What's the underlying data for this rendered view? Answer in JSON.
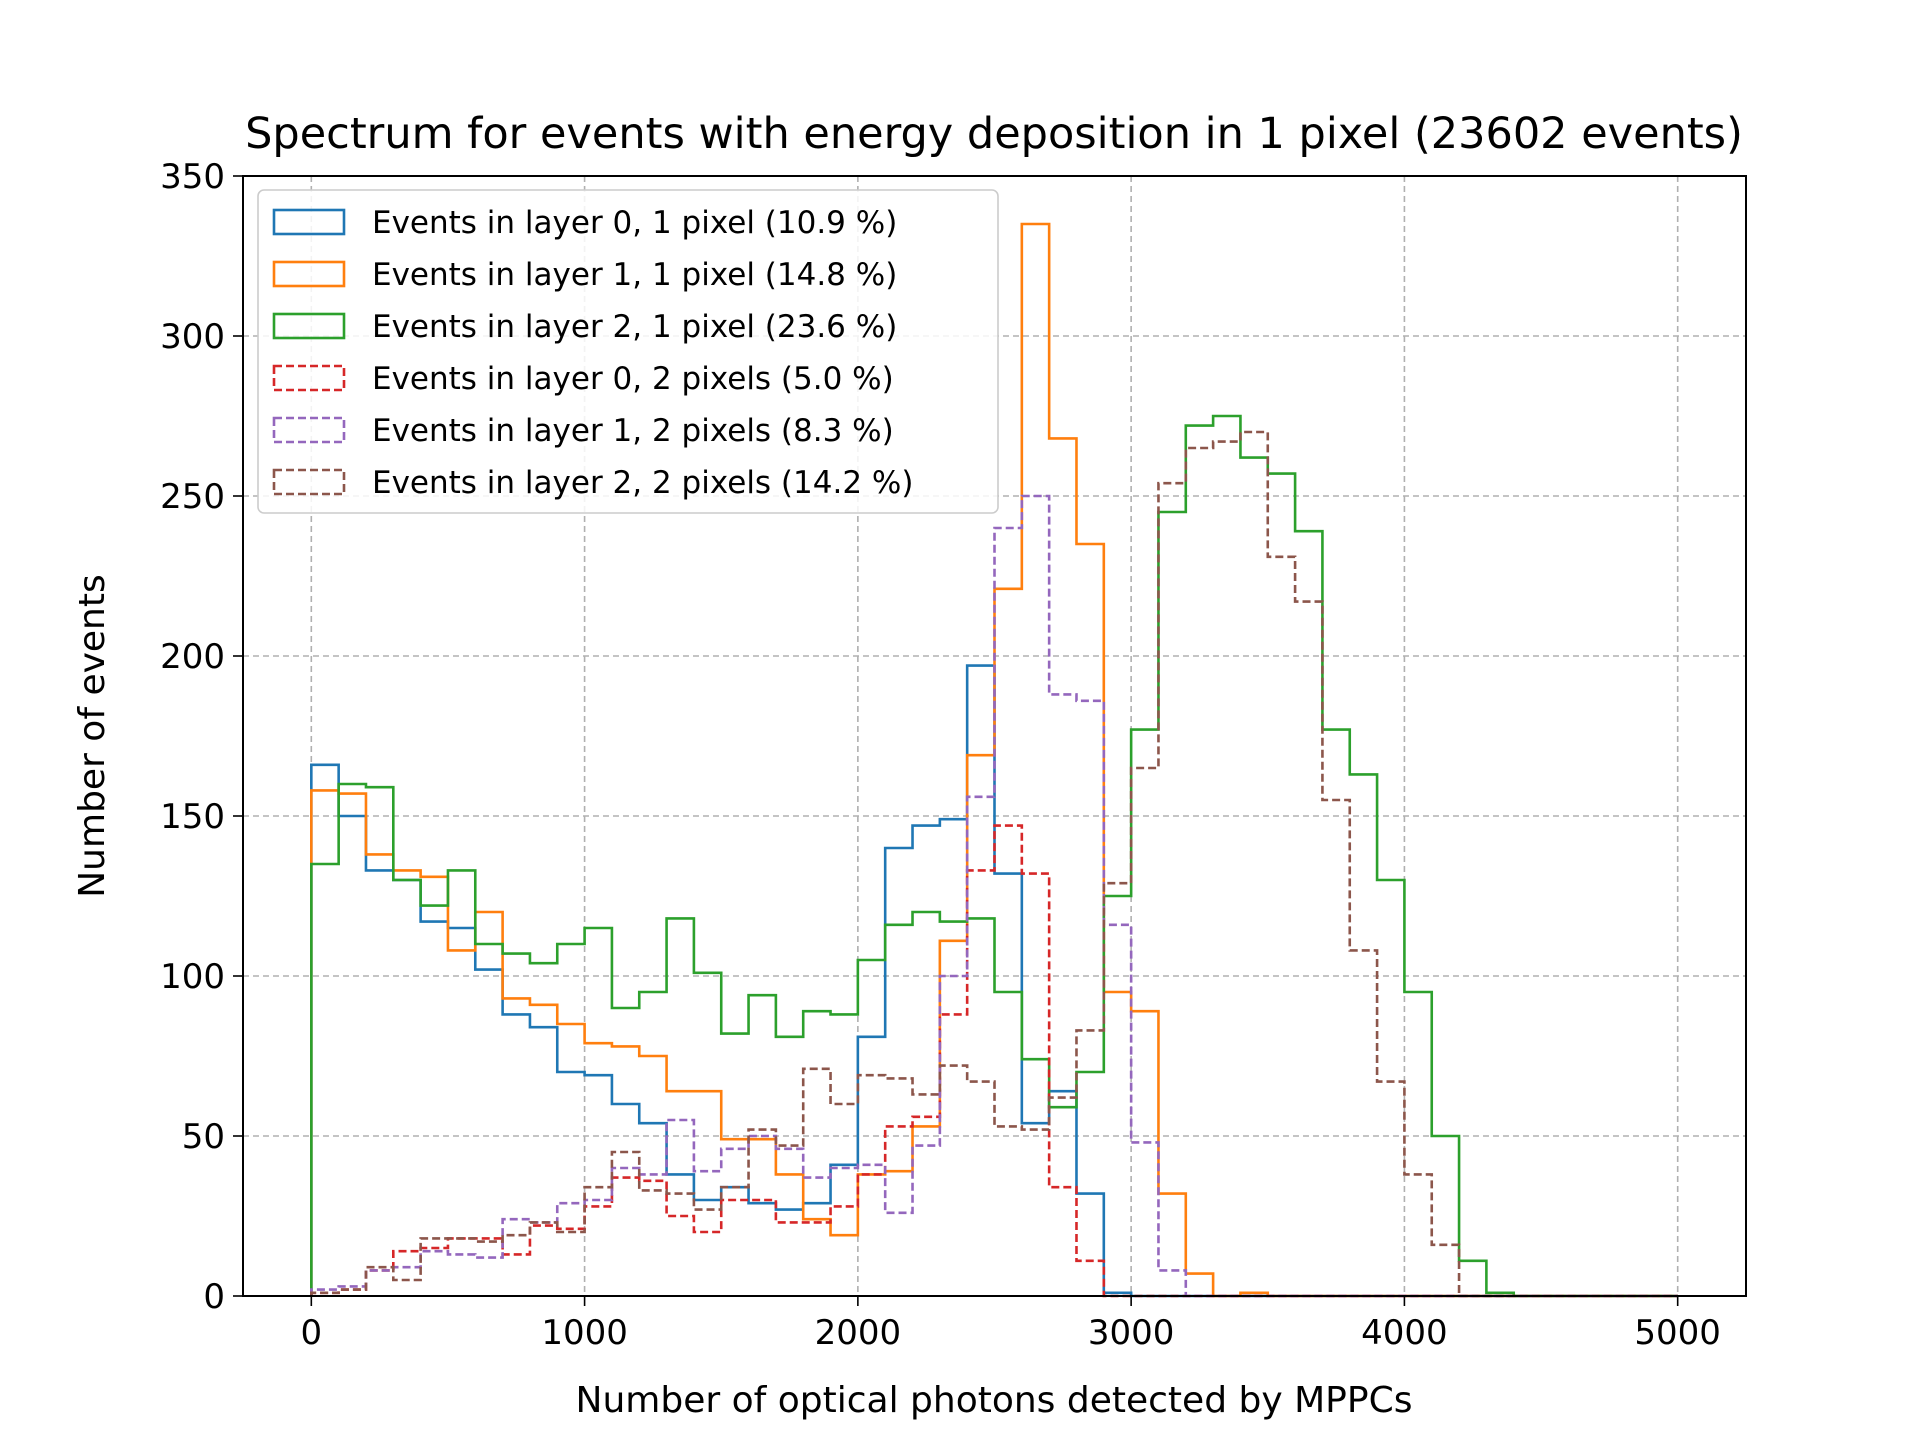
{
  "chart_data": {
    "type": "histogram-step",
    "title": "Spectrum for events with energy deposition in 1 pixel (23602 events)",
    "xlabel": "Number of optical photons detected by MPPCs",
    "ylabel": "Number of events",
    "xlim": [
      -250,
      5250
    ],
    "ylim": [
      0,
      350
    ],
    "xticks": [
      0,
      1000,
      2000,
      3000,
      4000,
      5000
    ],
    "xtick_labels": [
      "0",
      "1000",
      "2000",
      "3000",
      "4000",
      "5000"
    ],
    "yticks": [
      0,
      50,
      100,
      150,
      200,
      250,
      300,
      350
    ],
    "ytick_labels": [
      "0",
      "50",
      "100",
      "150",
      "200",
      "250",
      "300",
      "350"
    ],
    "grid": true,
    "legend_position": "top-left",
    "bin_start": 0,
    "bin_width": 100,
    "bin_count": 50,
    "series": [
      {
        "name": "Events in layer 0, 1 pixel (10.9 %)",
        "color": "#1f77b4",
        "dashed": false,
        "values": [
          166,
          150,
          133,
          130,
          117,
          115,
          102,
          88,
          84,
          70,
          69,
          60,
          54,
          38,
          30,
          34,
          29,
          27,
          29,
          41,
          81,
          140,
          147,
          149,
          197,
          132,
          54,
          64,
          32,
          1,
          0,
          0,
          0,
          0,
          0,
          0,
          0,
          0,
          0,
          0,
          0,
          0,
          0,
          0,
          0,
          0,
          0,
          0,
          0,
          0
        ]
      },
      {
        "name": "Events in layer 1, 1 pixel (14.8 %)",
        "color": "#ff7f0e",
        "dashed": false,
        "values": [
          158,
          157,
          138,
          133,
          131,
          108,
          120,
          93,
          91,
          85,
          79,
          78,
          75,
          64,
          64,
          49,
          49,
          38,
          24,
          19,
          38,
          39,
          53,
          111,
          169,
          221,
          335,
          268,
          235,
          95,
          89,
          32,
          7,
          0,
          1,
          0,
          0,
          0,
          0,
          0,
          0,
          0,
          0,
          0,
          0,
          0,
          0,
          0,
          0,
          0
        ]
      },
      {
        "name": "Events in layer 2, 1 pixel (23.6 %)",
        "color": "#2ca02c",
        "dashed": false,
        "values": [
          135,
          160,
          159,
          130,
          122,
          133,
          110,
          107,
          104,
          110,
          115,
          90,
          95,
          118,
          101,
          82,
          94,
          81,
          89,
          88,
          105,
          116,
          120,
          117,
          118,
          95,
          74,
          59,
          70,
          125,
          177,
          245,
          272,
          275,
          262,
          257,
          239,
          177,
          163,
          130,
          95,
          50,
          11,
          1,
          0,
          0,
          0,
          0,
          0,
          0
        ]
      },
      {
        "name": "Events in layer 0, 2 pixels (5.0 %)",
        "color": "#d62728",
        "dashed": true,
        "values": [
          1,
          2,
          8,
          14,
          15,
          18,
          18,
          13,
          22,
          21,
          28,
          37,
          36,
          25,
          20,
          30,
          30,
          23,
          23,
          28,
          38,
          53,
          56,
          88,
          133,
          147,
          132,
          34,
          11,
          0,
          0,
          0,
          0,
          0,
          0,
          0,
          0,
          0,
          0,
          0,
          0,
          0,
          0,
          0,
          0,
          0,
          0,
          0,
          0,
          0
        ]
      },
      {
        "name": "Events in layer 1, 2 pixels (8.3 %)",
        "color": "#9467bd",
        "dashed": true,
        "values": [
          2,
          3,
          8,
          9,
          14,
          13,
          12,
          24,
          23,
          29,
          30,
          40,
          38,
          55,
          39,
          46,
          50,
          46,
          37,
          40,
          41,
          26,
          47,
          100,
          156,
          240,
          250,
          188,
          186,
          116,
          48,
          8,
          0,
          0,
          0,
          0,
          0,
          0,
          0,
          0,
          0,
          0,
          0,
          0,
          0,
          0,
          0,
          0,
          0,
          0
        ]
      },
      {
        "name": "Events in layer 2, 2 pixels (14.2 %)",
        "color": "#8c564b",
        "dashed": true,
        "values": [
          1,
          2,
          9,
          5,
          18,
          18,
          17,
          19,
          23,
          20,
          34,
          45,
          33,
          32,
          27,
          34,
          52,
          47,
          71,
          60,
          69,
          68,
          63,
          72,
          67,
          53,
          52,
          62,
          83,
          129,
          165,
          254,
          265,
          267,
          270,
          231,
          217,
          155,
          108,
          67,
          38,
          16,
          0,
          0,
          0,
          0,
          0,
          0,
          0,
          0
        ]
      }
    ]
  }
}
